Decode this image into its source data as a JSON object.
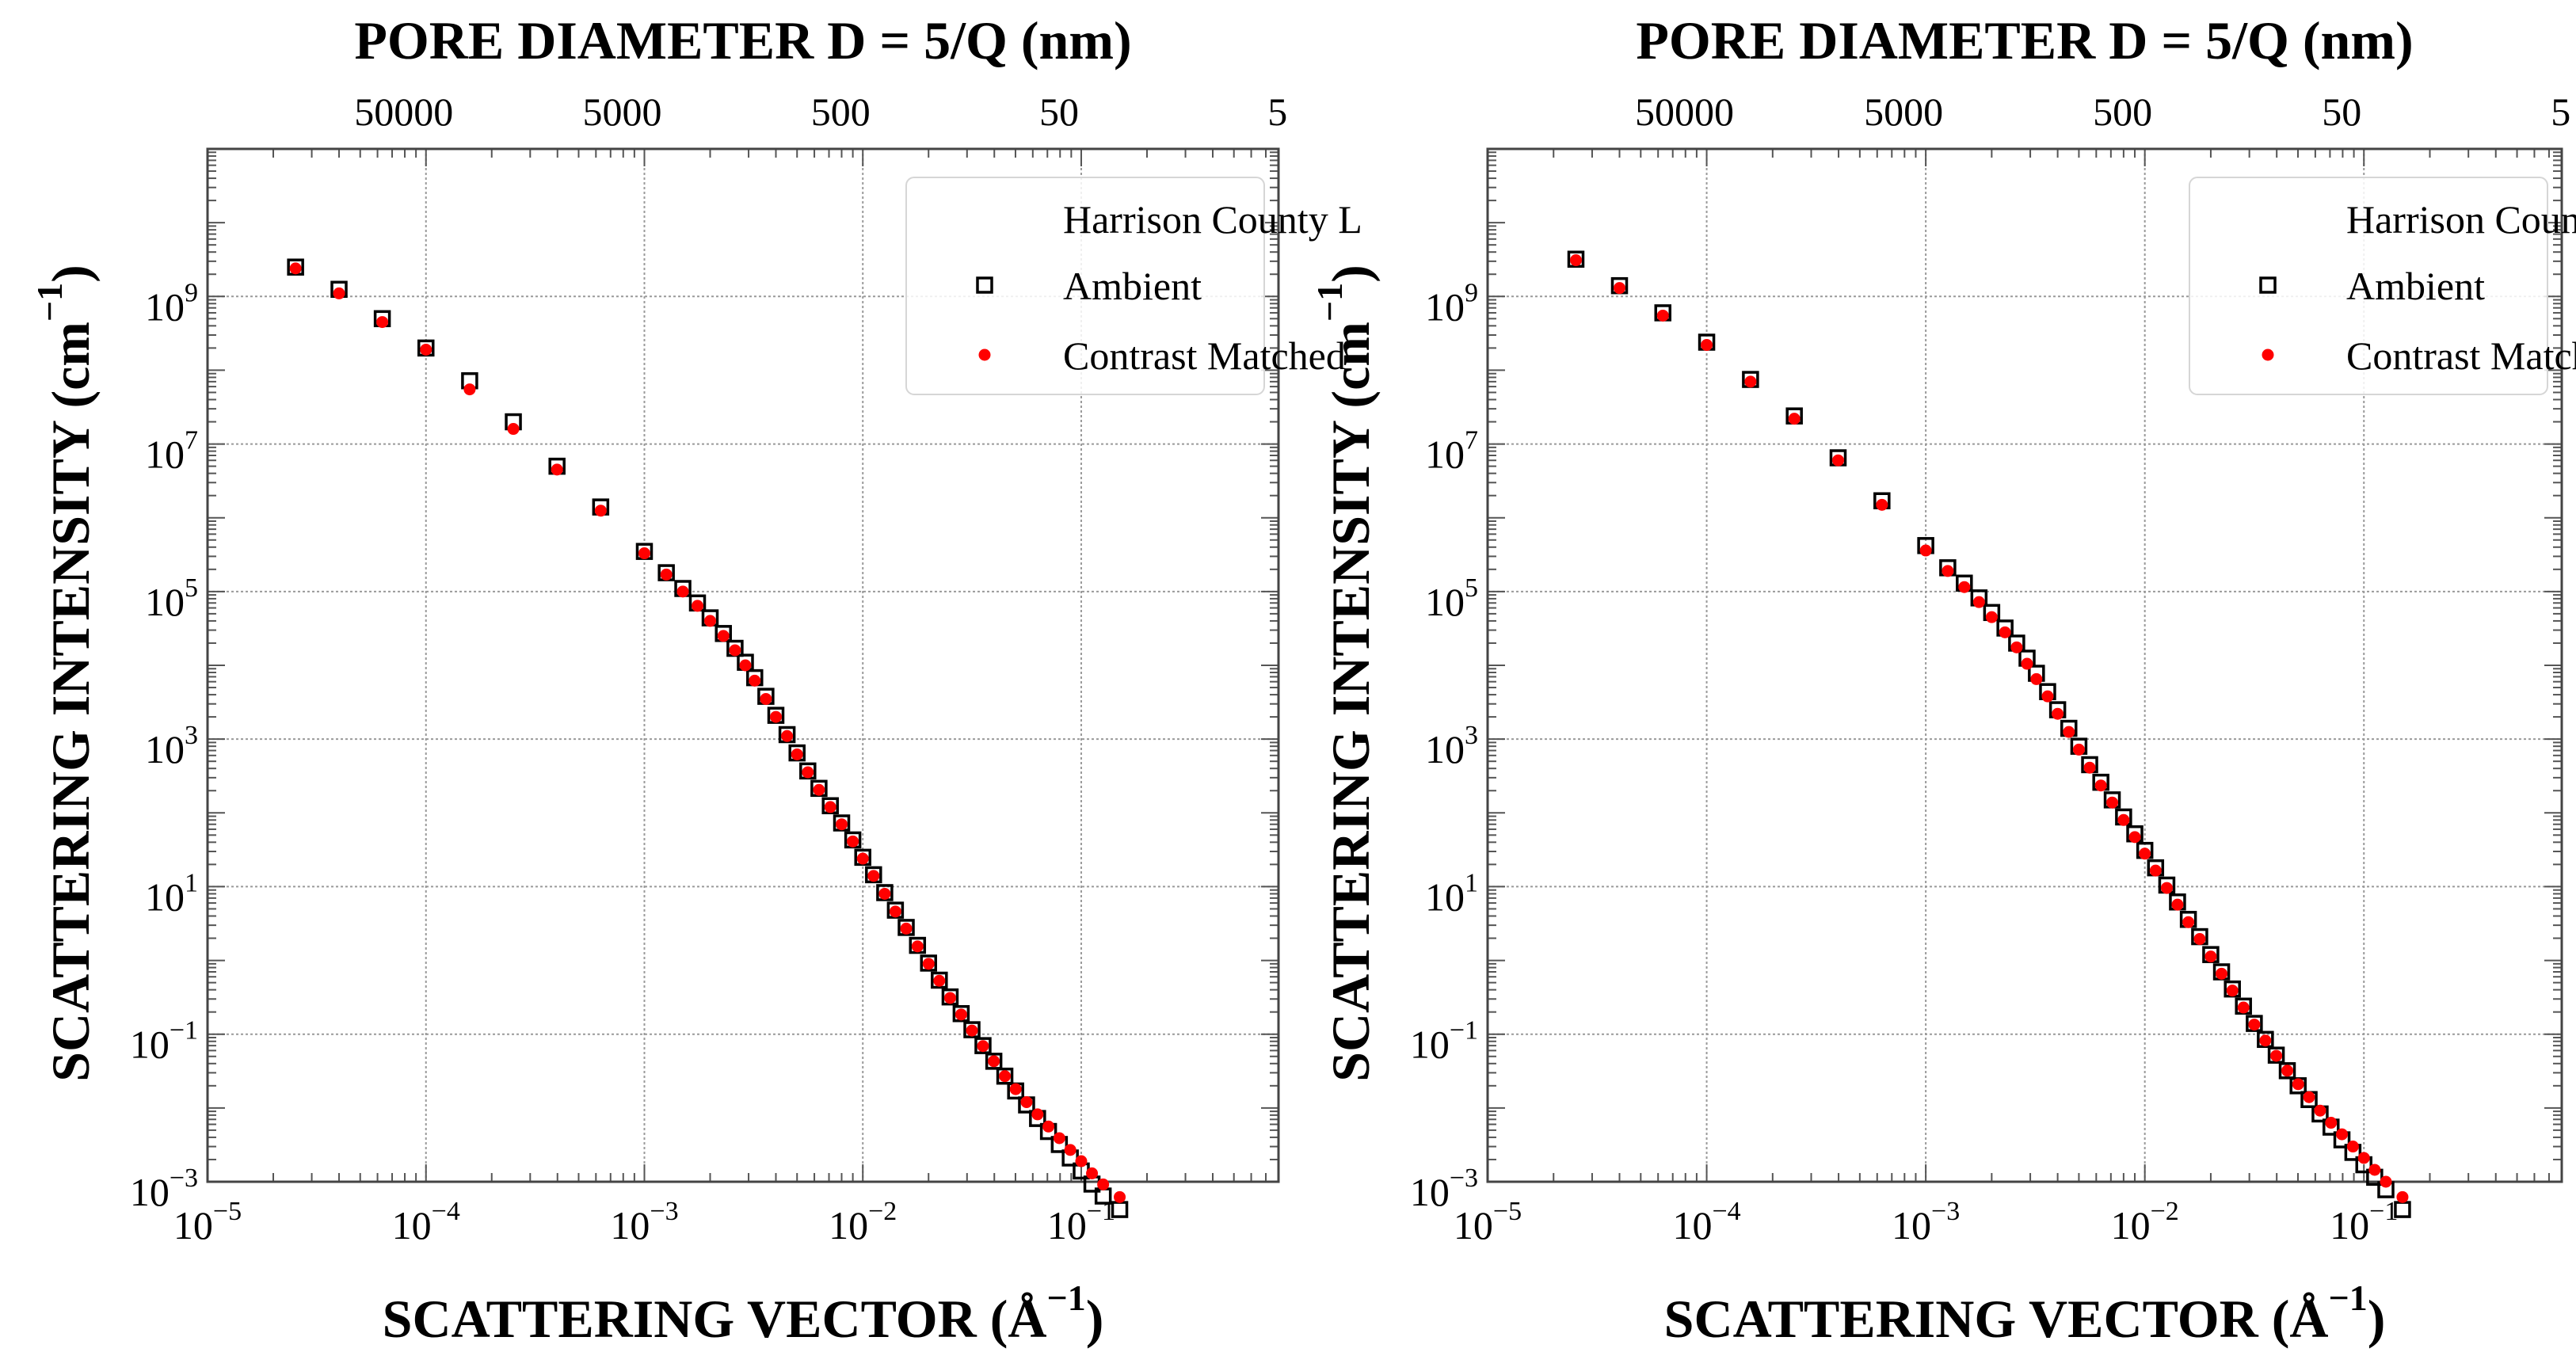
{
  "chart_data": [
    {
      "type": "scatter",
      "xscale": "log",
      "yscale": "log",
      "xlim": [
        1e-05,
        0.8
      ],
      "ylim": [
        0.001,
        100000000000.0
      ],
      "x_ticks": [
        1e-05,
        0.0001,
        0.001,
        0.01,
        0.1
      ],
      "x_tick_mantissa": [
        "10",
        "10",
        "10",
        "10",
        "10"
      ],
      "x_tick_exponents": [
        "−5",
        "−4",
        "−3",
        "−2",
        "−1"
      ],
      "y_ticks": [
        0.001,
        0.1,
        10,
        1000,
        100000,
        10000000,
        1000000000
      ],
      "y_tick_mantissa": [
        "10",
        "10",
        "10",
        "10",
        "10",
        "10",
        "10"
      ],
      "y_tick_exponents": [
        "−3",
        "−1",
        "1",
        "3",
        "5",
        "7",
        "9"
      ],
      "top_ticks": [
        0.0001,
        0.001,
        0.01,
        0.1,
        1
      ],
      "top_tick_labels": [
        "50000",
        "5000",
        "500",
        "50",
        "5"
      ],
      "xlabel": "SCATTERING VECTOR (Å",
      "xlabel_exp": "−1",
      "xlabel_close": ")",
      "ylabel": "SCATTERING INTENSITY (cm",
      "ylabel_exp": "−1",
      "ylabel_close": ")",
      "top_label": "PORE DIAMETER D = 5/Q (nm)",
      "legend_title": "Harrison County L",
      "grid": true,
      "legend_position": "top-right",
      "series": [
        {
          "name": "Ambient",
          "marker": "open-square",
          "color": "#000000",
          "x": [
            2.53e-05,
            4e-05,
            6.31e-05,
            0.0001,
            0.0001585,
            0.0002512,
            0.0003981,
            0.000631,
            0.001,
            0.00126,
            0.0015,
            0.00175,
            0.002,
            0.0023,
            0.0026,
            0.0029,
            0.0032,
            0.0036,
            0.004,
            0.0045,
            0.005,
            0.0056,
            0.0063,
            0.0071,
            0.008,
            0.009,
            0.01,
            0.0112,
            0.0126,
            0.0141,
            0.0158,
            0.0178,
            0.02,
            0.0224,
            0.0251,
            0.0282,
            0.0316,
            0.0355,
            0.0398,
            0.0447,
            0.0501,
            0.0562,
            0.0631,
            0.0708,
            0.0794,
            0.0891,
            0.1,
            0.112,
            0.126,
            0.15
          ],
          "y": [
            2500000000,
            1250000000,
            500000000,
            200000000,
            72000000,
            20000000,
            5000000,
            1400000,
            350000,
            180000,
            110000,
            70000,
            44000,
            27000,
            17000,
            11000,
            6800,
            3800,
            2100,
            1150,
            650,
            370,
            215,
            125,
            73,
            43,
            25,
            14.5,
            8.3,
            4.8,
            2.8,
            1.6,
            0.92,
            0.54,
            0.32,
            0.19,
            0.115,
            0.07,
            0.043,
            0.027,
            0.017,
            0.011,
            0.0072,
            0.0048,
            0.0032,
            0.0021,
            0.0014,
            0.00093,
            0.00064,
            0.00042
          ]
        },
        {
          "name": "Contrast Matched",
          "marker": "filled-circle",
          "color": "#ff0000",
          "x": [
            2.53e-05,
            4e-05,
            6.31e-05,
            0.0001,
            0.0001585,
            0.0002512,
            0.0003981,
            0.000631,
            0.001,
            0.00126,
            0.0015,
            0.00175,
            0.002,
            0.0023,
            0.0026,
            0.0029,
            0.0032,
            0.0036,
            0.004,
            0.0045,
            0.005,
            0.0056,
            0.0063,
            0.0071,
            0.008,
            0.009,
            0.01,
            0.0112,
            0.0126,
            0.0141,
            0.0158,
            0.0178,
            0.02,
            0.0224,
            0.0251,
            0.0282,
            0.0316,
            0.0355,
            0.0398,
            0.0447,
            0.0501,
            0.0562,
            0.0631,
            0.0708,
            0.0794,
            0.0891,
            0.1,
            0.112,
            0.126,
            0.15
          ],
          "y": [
            2400000000,
            1100000000,
            450000000,
            190000000,
            55000000,
            16000000,
            4500000,
            1250000,
            330000,
            170000,
            100000,
            64000,
            40000,
            25000,
            16000,
            10000,
            6200,
            3500,
            2000,
            1100,
            620,
            355,
            205,
            120,
            70,
            41,
            24,
            14,
            8.0,
            4.6,
            2.7,
            1.55,
            0.9,
            0.53,
            0.31,
            0.185,
            0.112,
            0.069,
            0.043,
            0.027,
            0.018,
            0.012,
            0.0082,
            0.0056,
            0.0039,
            0.0027,
            0.0019,
            0.0013,
            0.00092,
            0.00062
          ]
        }
      ]
    },
    {
      "type": "scatter",
      "xscale": "log",
      "yscale": "log",
      "xlim": [
        1e-05,
        0.8
      ],
      "ylim": [
        0.001,
        100000000000.0
      ],
      "x_ticks": [
        1e-05,
        0.0001,
        0.001,
        0.01,
        0.1
      ],
      "x_tick_mantissa": [
        "10",
        "10",
        "10",
        "10",
        "10"
      ],
      "x_tick_exponents": [
        "−5",
        "−4",
        "−3",
        "−2",
        "−1"
      ],
      "y_ticks": [
        0.001,
        0.1,
        10,
        1000,
        100000,
        10000000,
        1000000000
      ],
      "y_tick_mantissa": [
        "10",
        "10",
        "10",
        "10",
        "10",
        "10",
        "10"
      ],
      "y_tick_exponents": [
        "−3",
        "−1",
        "1",
        "3",
        "5",
        "7",
        "9"
      ],
      "top_ticks": [
        0.0001,
        0.001,
        0.01,
        0.1,
        1
      ],
      "top_tick_labels": [
        "50000",
        "5000",
        "500",
        "50",
        "5"
      ],
      "xlabel": "SCATTERING VECTOR (Å",
      "xlabel_exp": "−1",
      "xlabel_close": ")",
      "ylabel": "SCATTERING INTENSITY (cm",
      "ylabel_exp": "−1",
      "ylabel_close": ")",
      "top_label": "PORE DIAMETER D = 5/Q (nm)",
      "legend_title": "Harrison County L END",
      "grid": true,
      "legend_position": "top-right",
      "series": [
        {
          "name": "Ambient",
          "marker": "open-square",
          "color": "#000000",
          "x": [
            2.53e-05,
            4e-05,
            6.31e-05,
            0.0001,
            0.0001585,
            0.0002512,
            0.0003981,
            0.000631,
            0.001,
            0.00126,
            0.0015,
            0.00175,
            0.002,
            0.0023,
            0.0026,
            0.0029,
            0.0032,
            0.0036,
            0.004,
            0.0045,
            0.005,
            0.0056,
            0.0063,
            0.0071,
            0.008,
            0.009,
            0.01,
            0.0112,
            0.0126,
            0.0141,
            0.0158,
            0.0178,
            0.02,
            0.0224,
            0.0251,
            0.0282,
            0.0316,
            0.0355,
            0.0398,
            0.0447,
            0.0501,
            0.0562,
            0.0631,
            0.0708,
            0.0794,
            0.0891,
            0.1,
            0.112,
            0.126,
            0.15
          ],
          "y": [
            3200000000,
            1400000000,
            600000000,
            240000000,
            75000000,
            24000000,
            6500000,
            1700000,
            420000,
            210000,
            130000,
            82000,
            52000,
            32000,
            20000,
            12500,
            7800,
            4400,
            2500,
            1400,
            800,
            450,
            260,
            150,
            88,
            52,
            31,
            18,
            10.5,
            6.2,
            3.6,
            2.1,
            1.2,
            0.7,
            0.41,
            0.24,
            0.14,
            0.085,
            0.052,
            0.032,
            0.02,
            0.013,
            0.0083,
            0.0055,
            0.0037,
            0.0025,
            0.0017,
            0.00115,
            0.00078,
            0.00042
          ]
        },
        {
          "name": "Contrast Matched",
          "marker": "filled-circle",
          "color": "#ff0000",
          "x": [
            2.53e-05,
            4e-05,
            6.31e-05,
            0.0001,
            0.0001585,
            0.0002512,
            0.0003981,
            0.000631,
            0.001,
            0.00126,
            0.0015,
            0.00175,
            0.002,
            0.0023,
            0.0026,
            0.0029,
            0.0032,
            0.0036,
            0.004,
            0.0045,
            0.005,
            0.0056,
            0.0063,
            0.0071,
            0.008,
            0.009,
            0.01,
            0.0112,
            0.0126,
            0.0141,
            0.0158,
            0.0178,
            0.02,
            0.0224,
            0.0251,
            0.0282,
            0.0316,
            0.0355,
            0.0398,
            0.0447,
            0.0501,
            0.0562,
            0.0631,
            0.0708,
            0.0794,
            0.0891,
            0.1,
            0.112,
            0.126,
            0.15
          ],
          "y": [
            3100000000,
            1300000000,
            550000000,
            220000000,
            70000000,
            22000000,
            6000000,
            1500000,
            360000,
            190000,
            115000,
            72000,
            45000,
            28000,
            17500,
            10500,
            6500,
            3800,
            2200,
            1250,
            720,
            410,
            235,
            138,
            80,
            47,
            28,
            16.5,
            9.6,
            5.7,
            3.3,
            1.95,
            1.13,
            0.66,
            0.39,
            0.23,
            0.135,
            0.082,
            0.051,
            0.032,
            0.021,
            0.014,
            0.0092,
            0.0063,
            0.0044,
            0.003,
            0.0021,
            0.00145,
            0.001,
            0.00062
          ]
        }
      ]
    }
  ]
}
